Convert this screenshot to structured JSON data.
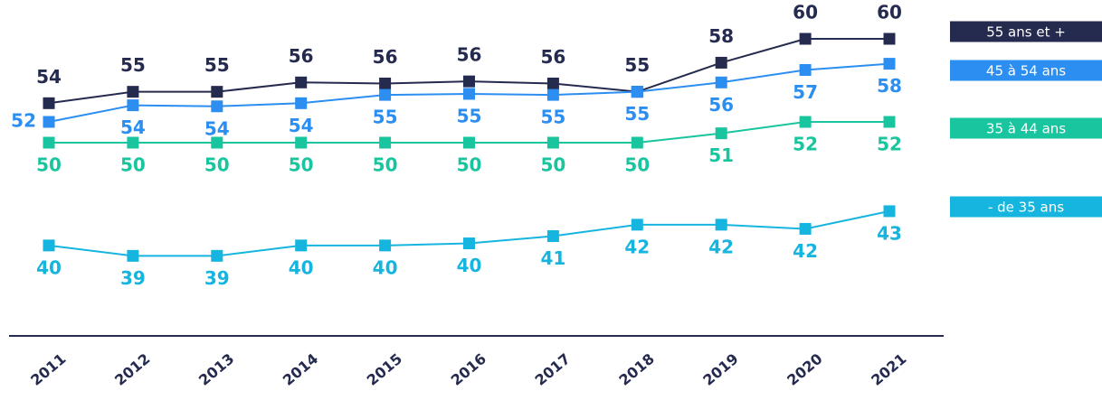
{
  "chart_data": {
    "type": "line",
    "categories": [
      "2011",
      "2012",
      "2013",
      "2014",
      "2015",
      "2016",
      "2017",
      "2018",
      "2019",
      "2020",
      "2021"
    ],
    "ylim": [
      36,
      63.5
    ],
    "series": [
      {
        "name": "55 ans et +",
        "color": "#252a4f",
        "values": [
          53.8,
          54.9,
          54.9,
          55.8,
          55.7,
          55.9,
          55.7,
          54.9,
          57.7,
          60.0,
          60.0
        ],
        "value_labels": [
          "54",
          "55",
          "55",
          "56",
          "56",
          "56",
          "56",
          "55",
          "58",
          "60",
          "60"
        ]
      },
      {
        "name": "45 à 54 ans",
        "color": "#2b8ef0",
        "values": [
          52.0,
          53.6,
          53.5,
          53.8,
          54.6,
          54.7,
          54.6,
          54.9,
          55.8,
          57.0,
          57.6
        ],
        "value_labels": [
          "52",
          "54",
          "54",
          "54",
          "55",
          "55",
          "55",
          "55",
          "56",
          "57",
          "58"
        ]
      },
      {
        "name": "35 à 44 ans",
        "color": "#19c59e",
        "values": [
          50.0,
          50.0,
          50.0,
          50.0,
          50.0,
          50.0,
          50.0,
          50.0,
          50.9,
          52.0,
          52.0
        ],
        "value_labels": [
          "50",
          "50",
          "50",
          "50",
          "50",
          "50",
          "50",
          "50",
          "51",
          "52",
          "52"
        ]
      },
      {
        "name": "- de 35 ans",
        "color": "#16b5df",
        "values": [
          40.1,
          39.1,
          39.1,
          40.1,
          40.1,
          40.3,
          41.0,
          42.1,
          42.1,
          41.7,
          43.4
        ],
        "value_labels": [
          "40",
          "39",
          "39",
          "40",
          "40",
          "40",
          "41",
          "42",
          "42",
          "42",
          "43"
        ]
      }
    ]
  }
}
